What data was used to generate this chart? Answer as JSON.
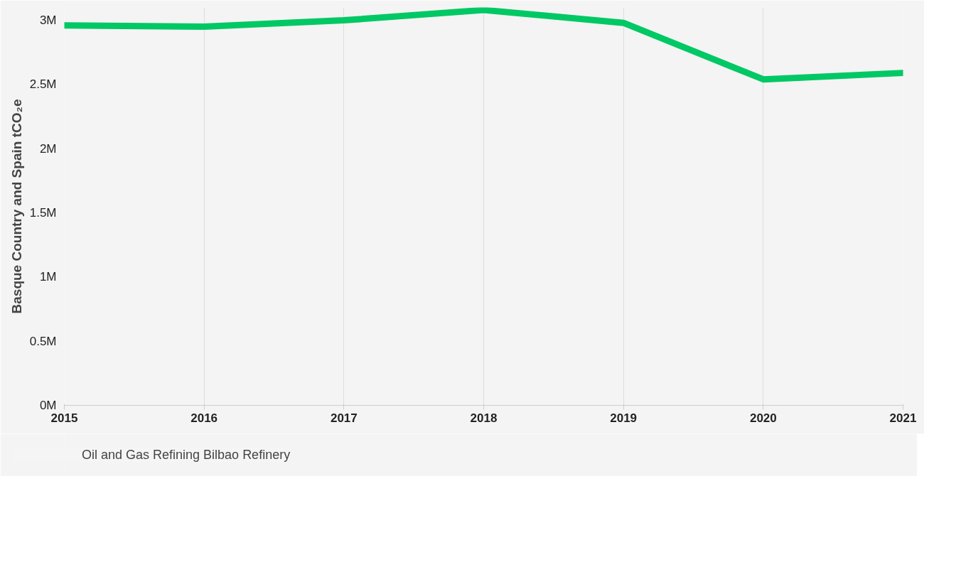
{
  "chart_data": {
    "type": "line",
    "ylabel": "Basque Country and Spain tCO₂e",
    "x": [
      2015,
      2016,
      2017,
      2018,
      2019,
      2020,
      2021
    ],
    "series": [
      {
        "name": "Oil and Gas Refining Bilbao Refinery",
        "color": "#00c864",
        "values": [
          2960000,
          2950000,
          3000000,
          3080000,
          2980000,
          2540000,
          2590000
        ]
      }
    ],
    "xlim": [
      2015,
      2021
    ],
    "xticks": [
      2015,
      2016,
      2017,
      2018,
      2019,
      2020,
      2021
    ],
    "ylim": [
      0,
      3100000
    ],
    "yticks": [
      {
        "value": 0,
        "label": "0M"
      },
      {
        "value": 500000,
        "label": "0.5M"
      },
      {
        "value": 1000000,
        "label": "1M"
      },
      {
        "value": 1500000,
        "label": "1.5M"
      },
      {
        "value": 2000000,
        "label": "2M"
      },
      {
        "value": 2500000,
        "label": "2.5M"
      },
      {
        "value": 3000000,
        "label": "3M"
      }
    ],
    "grid": "x",
    "legend": "bottom",
    "marker": "none",
    "line_style": "solid"
  }
}
